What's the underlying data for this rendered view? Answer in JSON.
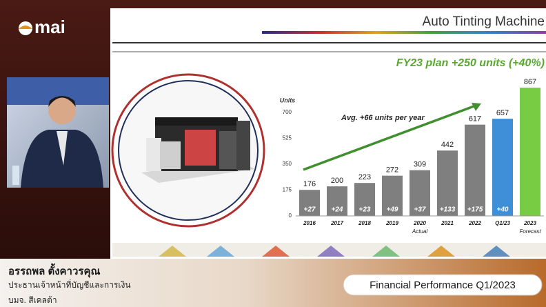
{
  "logo": "mai",
  "slide": {
    "title": "Auto Tinting Machine"
  },
  "chart_data": {
    "type": "bar",
    "title": "FY23 plan +250 units (+40%)",
    "y_label": "Units",
    "annotation": "Avg. +66 units per year",
    "categories": [
      "2016",
      "2017",
      "2018",
      "2019",
      "2020",
      "2021",
      "2022",
      "Q1/23",
      "2023"
    ],
    "values": [
      176,
      200,
      223,
      272,
      309,
      442,
      617,
      657,
      867
    ],
    "colors": [
      "#7f7f7f",
      "#7f7f7f",
      "#7f7f7f",
      "#7f7f7f",
      "#7f7f7f",
      "#7f7f7f",
      "#7f7f7f",
      "#3f8fd8",
      "#77cc44"
    ],
    "increment_labels": [
      "+27",
      "+24",
      "+23",
      "+49",
      "+37",
      "+133",
      "+175",
      "+40",
      null
    ],
    "group_labels": [
      "Actual",
      "Forecast"
    ],
    "ylim": [
      0,
      900
    ],
    "yticks": [
      0,
      175,
      350,
      525,
      700
    ]
  },
  "speaker": {
    "name": "อรรถพล ตั้งคาวรคุณ",
    "position": "ประธานเจ้าหน้าที่บัญชีและการเงิน",
    "company": "บมจ. สีเคลต้า"
  },
  "banner": "Financial Performance Q1/2023"
}
